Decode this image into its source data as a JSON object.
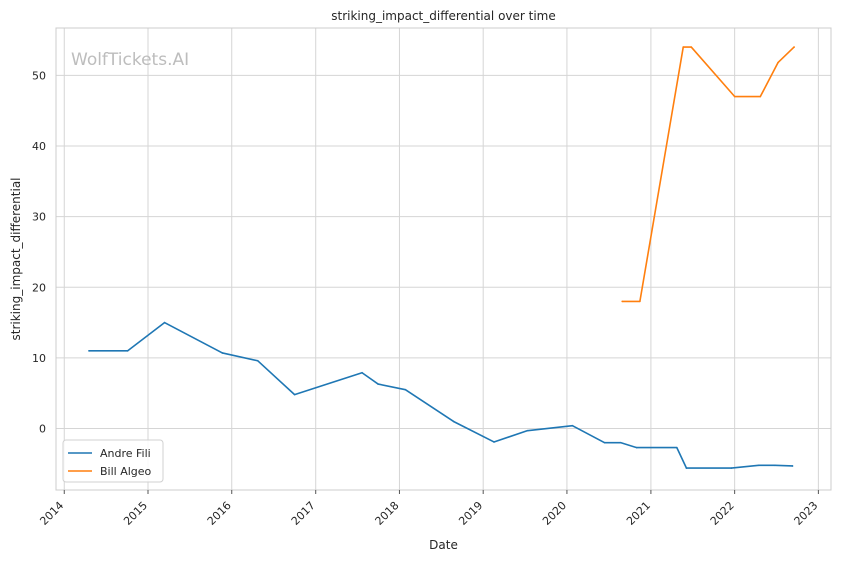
{
  "chart_data": {
    "type": "line",
    "title": "striking_impact_differential over time",
    "xlabel": "Date",
    "ylabel": "striking_impact_differential",
    "watermark": "WolfTickets.AI",
    "xlim": [
      "2013-11-26",
      "2023-02-25"
    ],
    "ylim": [
      -8.7,
      56.7
    ],
    "x_ticks": [
      "2014-01-01",
      "2015-01-01",
      "2016-01-01",
      "2017-01-01",
      "2018-01-01",
      "2019-01-01",
      "2020-01-01",
      "2021-01-01",
      "2022-01-01",
      "2023-01-01"
    ],
    "x_tick_labels": [
      "2014",
      "2015",
      "2016",
      "2017",
      "2018",
      "2019",
      "2020",
      "2021",
      "2022",
      "2023"
    ],
    "y_ticks": [
      0,
      10,
      20,
      30,
      40,
      50
    ],
    "grid": true,
    "legend_position": "lower-left",
    "series": [
      {
        "name": "Andre Fili",
        "color": "#1f77b4",
        "points": [
          {
            "x": "2014-04-19",
            "y": 11.0
          },
          {
            "x": "2014-10-04",
            "y": 11.0
          },
          {
            "x": "2015-03-14",
            "y": 15.0
          },
          {
            "x": "2015-11-21",
            "y": 10.7
          },
          {
            "x": "2016-04-23",
            "y": 9.6
          },
          {
            "x": "2016-10-01",
            "y": 4.8
          },
          {
            "x": "2017-07-22",
            "y": 7.9
          },
          {
            "x": "2017-09-30",
            "y": 6.3
          },
          {
            "x": "2018-01-27",
            "y": 5.5
          },
          {
            "x": "2018-08-25",
            "y": 1.0
          },
          {
            "x": "2019-02-17",
            "y": -1.9
          },
          {
            "x": "2019-07-13",
            "y": -0.3
          },
          {
            "x": "2020-01-25",
            "y": 0.4
          },
          {
            "x": "2020-06-13",
            "y": -2.0
          },
          {
            "x": "2020-08-22",
            "y": -2.0
          },
          {
            "x": "2020-10-31",
            "y": -2.7
          },
          {
            "x": "2021-04-24",
            "y": -2.7
          },
          {
            "x": "2021-06-05",
            "y": -5.6
          },
          {
            "x": "2021-12-18",
            "y": -5.6
          },
          {
            "x": "2022-04-16",
            "y": -5.2
          },
          {
            "x": "2022-06-25",
            "y": -5.2
          },
          {
            "x": "2022-09-10",
            "y": -5.3
          }
        ]
      },
      {
        "name": "Bill Algeo",
        "color": "#ff7f0e",
        "points": [
          {
            "x": "2020-08-29",
            "y": 18.0
          },
          {
            "x": "2020-11-14",
            "y": 18.0
          },
          {
            "x": "2021-05-22",
            "y": 54.0
          },
          {
            "x": "2021-06-26",
            "y": 54.0
          },
          {
            "x": "2022-01-01",
            "y": 47.0
          },
          {
            "x": "2022-04-23",
            "y": 47.0
          },
          {
            "x": "2022-07-09",
            "y": 51.8
          },
          {
            "x": "2022-09-17",
            "y": 54.0
          }
        ]
      }
    ]
  }
}
